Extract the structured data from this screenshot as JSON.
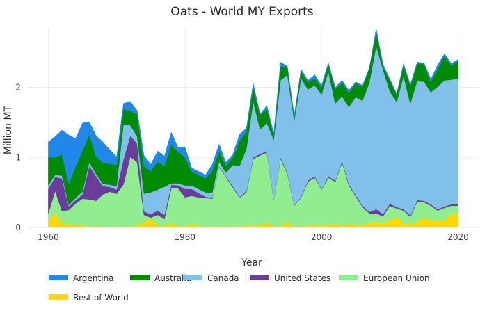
{
  "chart_data": {
    "type": "area",
    "stacked": true,
    "title": "Oats - World MY Exports",
    "xlabel": "Year",
    "ylabel": "Million MT",
    "xlim": [
      1957,
      2023
    ],
    "ylim": [
      0,
      2.85
    ],
    "xticks": [
      1960,
      1980,
      2000,
      2020
    ],
    "yticks": [
      0,
      1,
      2
    ],
    "grid": true,
    "legend_position": "bottom",
    "x": [
      1960,
      1961,
      1962,
      1963,
      1964,
      1965,
      1966,
      1967,
      1968,
      1969,
      1970,
      1971,
      1972,
      1973,
      1974,
      1975,
      1976,
      1977,
      1978,
      1979,
      1980,
      1981,
      1982,
      1983,
      1984,
      1985,
      1986,
      1987,
      1988,
      1989,
      1990,
      1991,
      1992,
      1993,
      1994,
      1995,
      1996,
      1997,
      1998,
      1999,
      2000,
      2001,
      2002,
      2003,
      2004,
      2005,
      2006,
      2007,
      2008,
      2009,
      2010,
      2011,
      2012,
      2013,
      2014,
      2015,
      2016,
      2017,
      2018,
      2019,
      2020
    ],
    "series": [
      {
        "name": "Rest of World",
        "color": "#ffd700",
        "values": [
          0.08,
          0.22,
          0.05,
          0.05,
          0.04,
          0.03,
          0.02,
          0.02,
          0.01,
          0.01,
          0.01,
          0.01,
          0.01,
          0.03,
          0.08,
          0.12,
          0.03,
          0.02,
          0.06,
          0.02,
          0.02,
          0.05,
          0.03,
          0.01,
          0.02,
          0.01,
          0.02,
          0.02,
          0.02,
          0.03,
          0.03,
          0.03,
          0.07,
          0.02,
          0.02,
          0.08,
          0.02,
          0.02,
          0.03,
          0.03,
          0.03,
          0.04,
          0.05,
          0.03,
          0.05,
          0.04,
          0.04,
          0.06,
          0.08,
          0.06,
          0.1,
          0.15,
          0.06,
          0.05,
          0.08,
          0.14,
          0.09,
          0.1,
          0.1,
          0.2,
          0.18
        ]
      },
      {
        "name": "European Union",
        "color": "#90ee90",
        "values": [
          0.12,
          0.3,
          0.18,
          0.2,
          0.3,
          0.38,
          0.38,
          0.36,
          0.46,
          0.5,
          0.47,
          0.6,
          1.0,
          0.9,
          0.1,
          0.02,
          0.15,
          0.1,
          0.5,
          0.54,
          0.41,
          0.4,
          0.4,
          0.41,
          0.39,
          0.85,
          0.7,
          0.55,
          0.4,
          0.47,
          0.95,
          1.0,
          1.0,
          0.37,
          0.96,
          0.68,
          0.29,
          0.4,
          0.62,
          0.68,
          0.51,
          0.67,
          0.6,
          0.9,
          0.55,
          0.4,
          0.25,
          0.14,
          0.12,
          0.1,
          0.21,
          0.12,
          0.18,
          0.1,
          0.29,
          0.22,
          0.22,
          0.14,
          0.18,
          0.11,
          0.13
        ]
      },
      {
        "name": "United States",
        "color": "#6a3d9a",
        "values": [
          0.35,
          0.2,
          0.47,
          0.05,
          0.05,
          0.06,
          0.48,
          0.35,
          0.12,
          0.07,
          0.06,
          0.36,
          0.3,
          0.27,
          0.05,
          0.05,
          0.06,
          0.06,
          0.05,
          0.04,
          0.12,
          0.1,
          0.06,
          0.02,
          0.01,
          0.01,
          0.01,
          0.02,
          0.01,
          0.02,
          0.02,
          0.02,
          0.02,
          0.01,
          0.02,
          0.02,
          0.01,
          0.01,
          0.02,
          0.02,
          0.01,
          0.02,
          0.02,
          0.02,
          0.02,
          0.02,
          0.02,
          0.02,
          0.06,
          0.03,
          0.03,
          0.02,
          0.02,
          0.02,
          0.02,
          0.02,
          0.02,
          0.02,
          0.02,
          0.02,
          0.02
        ]
      },
      {
        "name": "Canada",
        "color": "#80c0ea",
        "values": [
          0.05,
          0.03,
          0.04,
          0.02,
          0.03,
          0.04,
          0.05,
          0.03,
          0.03,
          0.03,
          0.05,
          0.5,
          0.15,
          0.1,
          0.25,
          0.31,
          0.3,
          0.4,
          0.02,
          0.03,
          0.05,
          0.05,
          0.06,
          0.06,
          0.08,
          0.07,
          0.05,
          0.3,
          0.45,
          0.6,
          0.8,
          0.35,
          0.4,
          0.85,
          1.1,
          1.4,
          1.2,
          1.7,
          1.3,
          1.3,
          1.35,
          1.5,
          1.1,
          0.92,
          1.1,
          1.4,
          1.5,
          1.85,
          2.33,
          2.06,
          1.6,
          1.5,
          1.9,
          1.6,
          1.7,
          1.7,
          1.6,
          1.75,
          1.8,
          1.78,
          1.8
        ]
      },
      {
        "name": "Australia",
        "color": "#008b00",
        "values": [
          0.4,
          0.25,
          0.3,
          0.3,
          0.45,
          0.58,
          0.4,
          0.25,
          0.3,
          0.3,
          0.3,
          0.22,
          0.2,
          0.32,
          0.4,
          0.3,
          0.4,
          0.3,
          0.55,
          0.45,
          0.4,
          0.2,
          0.2,
          0.2,
          0.3,
          0.15,
          0.1,
          0.1,
          0.35,
          0.25,
          0.2,
          0.2,
          0.2,
          0.05,
          0.2,
          0.1,
          0.05,
          0.1,
          0.1,
          0.1,
          0.1,
          0.1,
          0.2,
          0.2,
          0.2,
          0.2,
          0.2,
          0.2,
          0.2,
          0.05,
          0.16,
          0.1,
          0.15,
          0.25,
          0.25,
          0.25,
          0.15,
          0.25,
          0.35,
          0.2,
          0.25
        ]
      },
      {
        "name": "Argentina",
        "color": "#1f88e8",
        "values": [
          0.22,
          0.3,
          0.35,
          0.7,
          0.4,
          0.4,
          0.18,
          0.3,
          0.3,
          0.2,
          0.12,
          0.08,
          0.14,
          0.05,
          0.15,
          0.1,
          0.15,
          0.14,
          0.18,
          0.06,
          0.15,
          0.05,
          0.05,
          0.05,
          0.1,
          0.1,
          0.05,
          0.05,
          0.1,
          0.05,
          0.06,
          0.02,
          0.05,
          0.05,
          0.06,
          0.02,
          0.03,
          0.03,
          0.03,
          0.05,
          0.03,
          0.02,
          0.03,
          0.03,
          0.04,
          0.02,
          0.02,
          0.01,
          0.05,
          0.03,
          0.02,
          0.02,
          0.03,
          0.02,
          0.02,
          0.02,
          0.04,
          0.06,
          0.03,
          0.03,
          0.02
        ]
      }
    ],
    "legend_order": [
      "Argentina",
      "Australia",
      "Canada",
      "United States",
      "European Union",
      "Rest of World"
    ]
  }
}
